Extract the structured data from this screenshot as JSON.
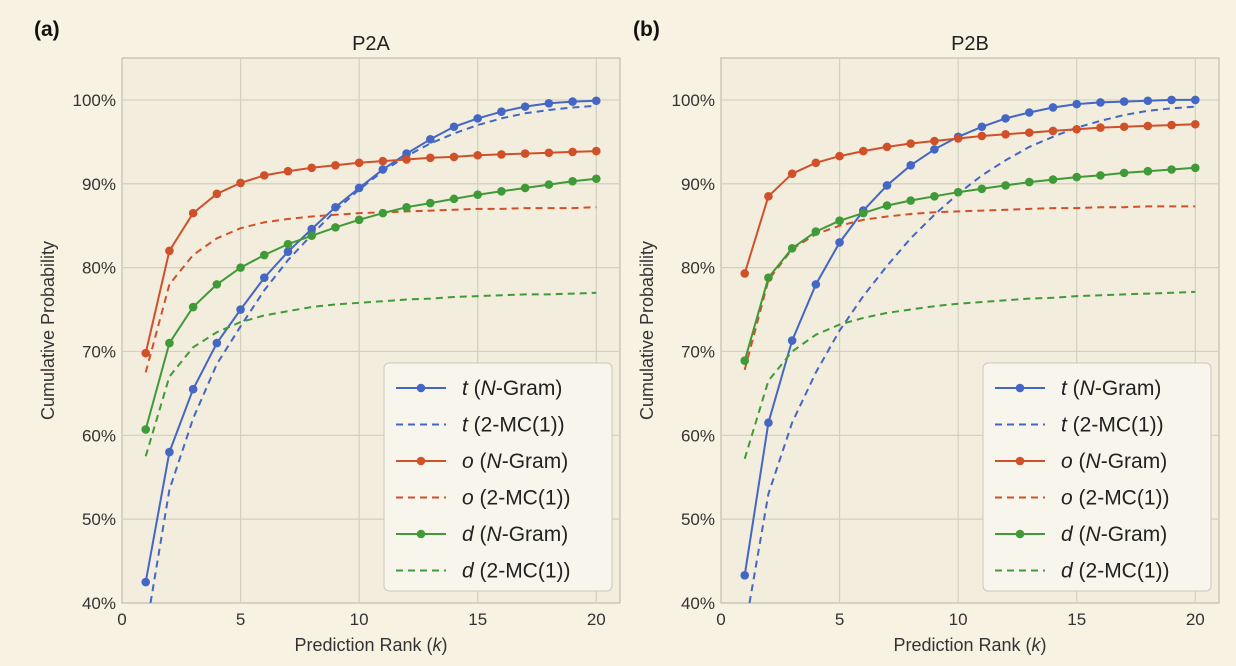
{
  "chart_data": [
    {
      "type": "line",
      "panel_label": "(a)",
      "title": "P2A",
      "xlabel": "Prediction Rank (k)",
      "ylabel": "Cumulative Probability",
      "xlim": [
        0,
        21
      ],
      "ylim": [
        40,
        105
      ],
      "xticks": [
        0,
        5,
        10,
        15,
        20
      ],
      "yticks": [
        40,
        50,
        60,
        70,
        80,
        90,
        100
      ],
      "ytick_suffix": "%",
      "grid": true,
      "legend_position": "lower-right",
      "series": [
        {
          "name": "t (N-Gram)",
          "symbol": "t",
          "method": "N-Gram",
          "color": "#4466c4",
          "style": "solid",
          "markers": true,
          "x": [
            1,
            2,
            3,
            4,
            5,
            6,
            7,
            8,
            9,
            10,
            11,
            12,
            13,
            14,
            15,
            16,
            17,
            18,
            19,
            20
          ],
          "y": [
            42.5,
            58.0,
            65.5,
            71.0,
            75.0,
            78.8,
            81.9,
            84.6,
            87.2,
            89.5,
            91.7,
            93.6,
            95.3,
            96.8,
            97.8,
            98.6,
            99.2,
            99.6,
            99.8,
            99.9
          ]
        },
        {
          "name": "t (2-MC(1))",
          "symbol": "t",
          "method": "2-MC(1)",
          "color": "#4466c4",
          "style": "dashed",
          "markers": false,
          "x": [
            1.2,
            2,
            3,
            4,
            5,
            6,
            7,
            8,
            9,
            10,
            11,
            12,
            13,
            14,
            15,
            16,
            17,
            18,
            19,
            20
          ],
          "y": [
            40.0,
            53.5,
            62.0,
            68.5,
            73.0,
            77.3,
            80.9,
            83.9,
            86.8,
            89.3,
            91.5,
            93.3,
            94.8,
            96.0,
            97.0,
            97.8,
            98.4,
            98.8,
            99.1,
            99.3
          ]
        },
        {
          "name": "o (N-Gram)",
          "symbol": "o",
          "method": "N-Gram",
          "color": "#d0502a",
          "style": "solid",
          "markers": true,
          "x": [
            1,
            2,
            3,
            4,
            5,
            6,
            7,
            8,
            9,
            10,
            11,
            12,
            13,
            14,
            15,
            16,
            17,
            18,
            19,
            20
          ],
          "y": [
            69.8,
            82.0,
            86.5,
            88.8,
            90.1,
            91.0,
            91.5,
            91.9,
            92.2,
            92.5,
            92.7,
            92.9,
            93.1,
            93.2,
            93.4,
            93.5,
            93.6,
            93.7,
            93.8,
            93.9
          ]
        },
        {
          "name": "o (2-MC(1))",
          "symbol": "o",
          "method": "2-MC(1)",
          "color": "#d0502a",
          "style": "dashed",
          "markers": false,
          "x": [
            1,
            2,
            3,
            4,
            5,
            6,
            7,
            8,
            9,
            10,
            11,
            12,
            13,
            14,
            15,
            16,
            17,
            18,
            19,
            20
          ],
          "y": [
            67.5,
            78.0,
            81.5,
            83.5,
            84.7,
            85.4,
            85.8,
            86.1,
            86.3,
            86.5,
            86.6,
            86.7,
            86.8,
            86.9,
            87.0,
            87.0,
            87.1,
            87.1,
            87.1,
            87.2
          ]
        },
        {
          "name": "d (N-Gram)",
          "symbol": "d",
          "method": "N-Gram",
          "color": "#3f9a37",
          "style": "solid",
          "markers": true,
          "x": [
            1,
            2,
            3,
            4,
            5,
            6,
            7,
            8,
            9,
            10,
            11,
            12,
            13,
            14,
            15,
            16,
            17,
            18,
            19,
            20
          ],
          "y": [
            60.7,
            71.0,
            75.3,
            78.0,
            80.0,
            81.5,
            82.8,
            83.8,
            84.8,
            85.7,
            86.5,
            87.2,
            87.7,
            88.2,
            88.7,
            89.1,
            89.5,
            89.9,
            90.3,
            90.6
          ]
        },
        {
          "name": "d (2-MC(1))",
          "symbol": "d",
          "method": "2-MC(1)",
          "color": "#3f9a37",
          "style": "dashed",
          "markers": false,
          "x": [
            1,
            2,
            3,
            4,
            5,
            6,
            7,
            8,
            9,
            10,
            11,
            12,
            13,
            14,
            15,
            16,
            17,
            18,
            19,
            20
          ],
          "y": [
            57.5,
            67.0,
            70.5,
            72.3,
            73.5,
            74.3,
            74.8,
            75.3,
            75.6,
            75.8,
            76.0,
            76.2,
            76.3,
            76.5,
            76.6,
            76.7,
            76.8,
            76.8,
            76.9,
            77.0
          ]
        }
      ]
    },
    {
      "type": "line",
      "panel_label": "(b)",
      "title": "P2B",
      "xlabel": "Prediction Rank (k)",
      "ylabel": "Cumulative Probability",
      "xlim": [
        0,
        21
      ],
      "ylim": [
        40,
        105
      ],
      "xticks": [
        0,
        5,
        10,
        15,
        20
      ],
      "yticks": [
        40,
        50,
        60,
        70,
        80,
        90,
        100
      ],
      "ytick_suffix": "%",
      "grid": true,
      "legend_position": "lower-right",
      "series": [
        {
          "name": "t (N-Gram)",
          "symbol": "t",
          "method": "N-Gram",
          "color": "#4466c4",
          "style": "solid",
          "markers": true,
          "x": [
            1,
            2,
            3,
            4,
            5,
            6,
            7,
            8,
            9,
            10,
            11,
            12,
            13,
            14,
            15,
            16,
            17,
            18,
            19,
            20
          ],
          "y": [
            43.3,
            61.5,
            71.3,
            78.0,
            83.0,
            86.8,
            89.8,
            92.2,
            94.1,
            95.6,
            96.8,
            97.8,
            98.5,
            99.1,
            99.5,
            99.7,
            99.8,
            99.9,
            100.0,
            100.0
          ]
        },
        {
          "name": "t (2-MC(1))",
          "symbol": "t",
          "method": "2-MC(1)",
          "color": "#4466c4",
          "style": "dashed",
          "markers": false,
          "x": [
            1.2,
            2,
            3,
            4,
            5,
            6,
            7,
            8,
            9,
            10,
            11,
            12,
            13,
            14,
            15,
            16,
            17,
            18,
            19,
            20
          ],
          "y": [
            40.0,
            53.0,
            61.5,
            67.5,
            72.5,
            76.6,
            80.2,
            83.5,
            86.3,
            88.8,
            91.0,
            92.8,
            94.4,
            95.6,
            96.7,
            97.5,
            98.2,
            98.7,
            99.0,
            99.2
          ]
        },
        {
          "name": "o (N-Gram)",
          "symbol": "o",
          "method": "N-Gram",
          "color": "#d0502a",
          "style": "solid",
          "markers": true,
          "x": [
            1,
            2,
            3,
            4,
            5,
            6,
            7,
            8,
            9,
            10,
            11,
            12,
            13,
            14,
            15,
            16,
            17,
            18,
            19,
            20
          ],
          "y": [
            79.3,
            88.5,
            91.2,
            92.5,
            93.3,
            93.9,
            94.4,
            94.8,
            95.1,
            95.4,
            95.7,
            95.9,
            96.1,
            96.3,
            96.5,
            96.7,
            96.8,
            96.9,
            97.0,
            97.1
          ]
        },
        {
          "name": "o (2-MC(1))",
          "symbol": "o",
          "method": "2-MC(1)",
          "color": "#d0502a",
          "style": "dashed",
          "markers": false,
          "x": [
            1,
            2,
            3,
            4,
            5,
            6,
            7,
            8,
            9,
            10,
            11,
            12,
            13,
            14,
            15,
            16,
            17,
            18,
            19,
            20
          ],
          "y": [
            67.8,
            78.5,
            82.2,
            84.0,
            85.0,
            85.7,
            86.1,
            86.4,
            86.6,
            86.7,
            86.8,
            86.9,
            87.0,
            87.1,
            87.1,
            87.2,
            87.2,
            87.3,
            87.3,
            87.3
          ]
        },
        {
          "name": "d (N-Gram)",
          "symbol": "d",
          "method": "N-Gram",
          "color": "#3f9a37",
          "style": "solid",
          "markers": true,
          "x": [
            1,
            2,
            3,
            4,
            5,
            6,
            7,
            8,
            9,
            10,
            11,
            12,
            13,
            14,
            15,
            16,
            17,
            18,
            19,
            20
          ],
          "y": [
            68.9,
            78.8,
            82.3,
            84.3,
            85.6,
            86.5,
            87.4,
            88.0,
            88.5,
            89.0,
            89.4,
            89.8,
            90.2,
            90.5,
            90.8,
            91.0,
            91.3,
            91.5,
            91.7,
            91.9
          ]
        },
        {
          "name": "d (2-MC(1))",
          "symbol": "d",
          "method": "2-MC(1)",
          "color": "#3f9a37",
          "style": "dashed",
          "markers": false,
          "x": [
            1,
            2,
            3,
            4,
            5,
            6,
            7,
            8,
            9,
            10,
            11,
            12,
            13,
            14,
            15,
            16,
            17,
            18,
            19,
            20
          ],
          "y": [
            57.2,
            66.5,
            70.0,
            72.0,
            73.2,
            74.0,
            74.6,
            75.0,
            75.4,
            75.7,
            75.9,
            76.1,
            76.3,
            76.4,
            76.6,
            76.7,
            76.8,
            76.9,
            77.0,
            77.1
          ]
        }
      ]
    }
  ]
}
